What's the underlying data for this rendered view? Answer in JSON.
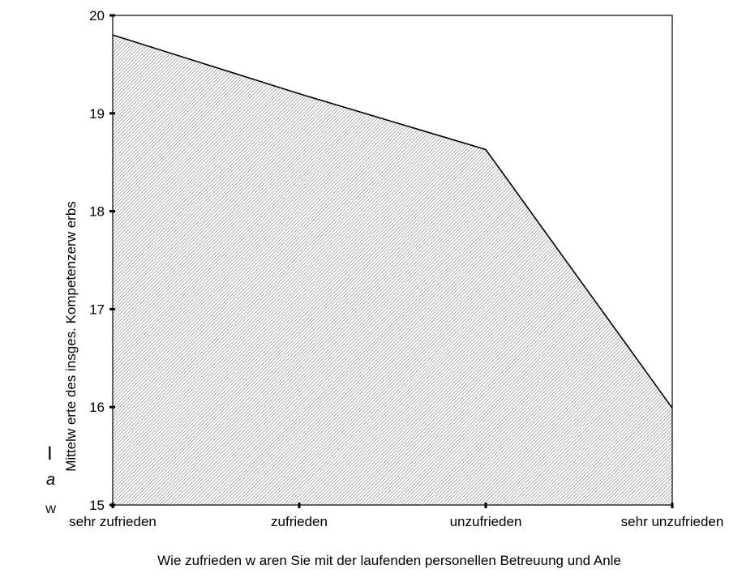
{
  "chart_data": {
    "type": "area",
    "categories": [
      "sehr zufrieden",
      "zufrieden",
      "unzufrieden",
      "sehr unzufrieden"
    ],
    "values": [
      19.8,
      19.2,
      18.63,
      15.99
    ],
    "xlabel": "Wie zufrieden w aren Sie mit der laufenden personellen Betreuung und Anle",
    "ylabel": "Mittelw erte des insges. Kompetenzerw erbs",
    "ylim": [
      15,
      20
    ],
    "yticks": [
      "15",
      "16",
      "17",
      "18",
      "19",
      "20"
    ],
    "grid": false,
    "fill_pattern": "diagonal-hatch",
    "colors": {
      "fill_bg": "#ffffff",
      "hatch": "#9a9a9a",
      "line": "#000000"
    }
  },
  "edge_fragments": [
    "I",
    "a",
    "W"
  ]
}
